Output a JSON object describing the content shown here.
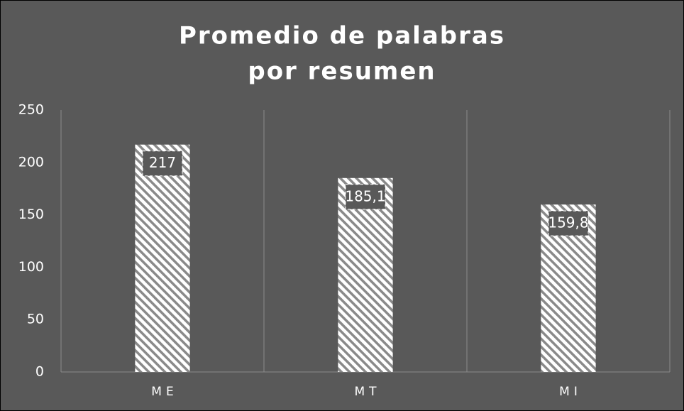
{
  "chart_data": {
    "type": "bar",
    "title": [
      "Promedio de palabras",
      "por resumen"
    ],
    "categories": [
      "ME",
      "MT",
      "MI"
    ],
    "values": [
      217,
      185.1,
      159.8
    ],
    "value_labels": [
      "217",
      "185,1",
      "159,8"
    ],
    "color": "#8a8a8a",
    "ylim": [
      0,
      250
    ],
    "yticks": [
      0,
      50,
      100,
      150,
      200,
      250
    ]
  }
}
